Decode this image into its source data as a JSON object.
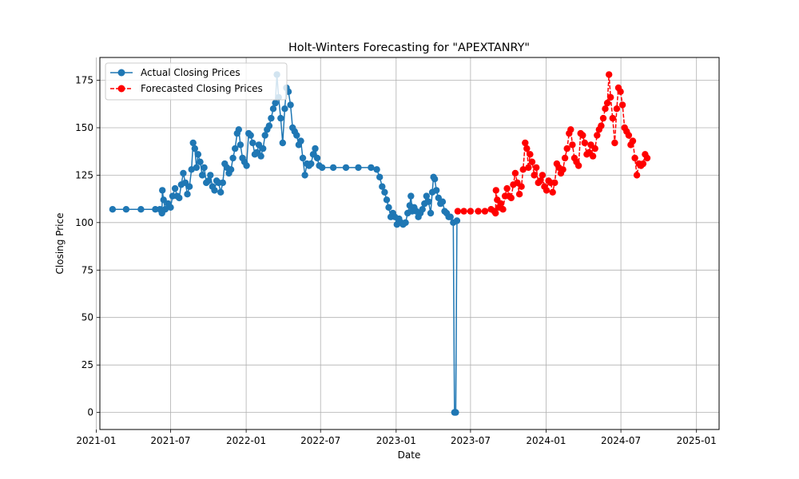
{
  "chart_data": {
    "type": "line",
    "title": "Holt-Winters Forecasting for \"APEXTANRY\"",
    "xlabel": "Date",
    "ylabel": "Closing Price",
    "xlim": [
      "2021-01-10",
      "2025-02-25"
    ],
    "ylim": [
      -9,
      187
    ],
    "x_ticks": [
      "2021-01-01",
      "2021-07-01",
      "2022-01-01",
      "2022-07-01",
      "2023-01-01",
      "2023-07-01",
      "2024-01-01",
      "2024-07-01",
      "2025-01-01"
    ],
    "x_tick_labels": [
      "2021-01",
      "2021-07",
      "2022-01",
      "2022-07",
      "2023-01",
      "2023-07",
      "2024-01",
      "2024-07",
      "2025-01"
    ],
    "y_ticks": [
      0,
      25,
      50,
      75,
      100,
      125,
      150,
      175
    ],
    "y_tick_labels": [
      "0",
      "25",
      "50",
      "75",
      "100",
      "125",
      "150",
      "175"
    ],
    "grid": true,
    "legend_position": "top-left",
    "series": [
      {
        "name": "Actual Closing Prices",
        "color": "#1f77b4",
        "line_style": "solid",
        "marker": "circle",
        "points": [
          [
            "2021-02-10",
            107
          ],
          [
            "2021-03-15",
            107
          ],
          [
            "2021-04-20",
            107
          ],
          [
            "2021-05-25",
            107
          ],
          [
            "2021-06-05",
            107
          ],
          [
            "2021-06-10",
            105
          ],
          [
            "2021-06-11",
            117
          ],
          [
            "2021-06-14",
            112
          ],
          [
            "2021-06-18",
            107
          ],
          [
            "2021-06-25",
            110
          ],
          [
            "2021-07-01",
            108
          ],
          [
            "2021-07-06",
            114
          ],
          [
            "2021-07-12",
            118
          ],
          [
            "2021-07-17",
            114
          ],
          [
            "2021-07-22",
            113
          ],
          [
            "2021-07-27",
            120
          ],
          [
            "2021-08-01",
            126
          ],
          [
            "2021-08-06",
            121
          ],
          [
            "2021-08-11",
            115
          ],
          [
            "2021-08-16",
            119
          ],
          [
            "2021-08-21",
            128
          ],
          [
            "2021-08-25",
            142
          ],
          [
            "2021-08-29",
            139
          ],
          [
            "2021-09-02",
            129
          ],
          [
            "2021-09-06",
            136
          ],
          [
            "2021-09-11",
            132
          ],
          [
            "2021-09-16",
            125
          ],
          [
            "2021-09-21",
            129
          ],
          [
            "2021-09-26",
            121
          ],
          [
            "2021-10-01",
            122
          ],
          [
            "2021-10-06",
            125
          ],
          [
            "2021-10-11",
            119
          ],
          [
            "2021-10-16",
            117
          ],
          [
            "2021-10-21",
            122
          ],
          [
            "2021-10-26",
            121
          ],
          [
            "2021-10-31",
            116
          ],
          [
            "2021-11-05",
            121
          ],
          [
            "2021-11-10",
            131
          ],
          [
            "2021-11-15",
            129
          ],
          [
            "2021-11-20",
            126
          ],
          [
            "2021-11-25",
            128
          ],
          [
            "2021-11-30",
            134
          ],
          [
            "2021-12-05",
            139
          ],
          [
            "2021-12-10",
            147
          ],
          [
            "2021-12-14",
            149
          ],
          [
            "2021-12-18",
            141
          ],
          [
            "2021-12-23",
            134
          ],
          [
            "2021-12-28",
            132
          ],
          [
            "2022-01-02",
            130
          ],
          [
            "2022-01-07",
            147
          ],
          [
            "2022-01-12",
            146
          ],
          [
            "2022-01-17",
            142
          ],
          [
            "2022-01-22",
            136
          ],
          [
            "2022-01-27",
            137
          ],
          [
            "2022-02-01",
            141
          ],
          [
            "2022-02-06",
            135
          ],
          [
            "2022-02-11",
            139
          ],
          [
            "2022-02-16",
            146
          ],
          [
            "2022-02-21",
            149
          ],
          [
            "2022-02-26",
            151
          ],
          [
            "2022-03-03",
            155
          ],
          [
            "2022-03-08",
            160
          ],
          [
            "2022-03-13",
            163
          ],
          [
            "2022-03-17",
            178
          ],
          [
            "2022-03-21",
            166
          ],
          [
            "2022-03-26",
            155
          ],
          [
            "2022-03-31",
            142
          ],
          [
            "2022-04-05",
            160
          ],
          [
            "2022-04-09",
            171
          ],
          [
            "2022-04-14",
            169
          ],
          [
            "2022-04-19",
            162
          ],
          [
            "2022-04-24",
            150
          ],
          [
            "2022-04-29",
            148
          ],
          [
            "2022-05-04",
            146
          ],
          [
            "2022-05-09",
            141
          ],
          [
            "2022-05-14",
            143
          ],
          [
            "2022-05-19",
            134
          ],
          [
            "2022-05-24",
            125
          ],
          [
            "2022-05-29",
            131
          ],
          [
            "2022-06-03",
            130
          ],
          [
            "2022-06-08",
            131
          ],
          [
            "2022-06-13",
            136
          ],
          [
            "2022-06-18",
            139
          ],
          [
            "2022-06-23",
            134
          ],
          [
            "2022-06-28",
            130
          ],
          [
            "2022-07-05",
            129
          ],
          [
            "2022-08-01",
            129
          ],
          [
            "2022-09-01",
            129
          ],
          [
            "2022-10-01",
            129
          ],
          [
            "2022-11-01",
            129
          ],
          [
            "2022-11-15",
            128
          ],
          [
            "2022-11-22",
            124
          ],
          [
            "2022-11-28",
            119
          ],
          [
            "2022-12-04",
            116
          ],
          [
            "2022-12-09",
            112
          ],
          [
            "2022-12-14",
            108
          ],
          [
            "2022-12-19",
            103
          ],
          [
            "2022-12-24",
            105
          ],
          [
            "2022-12-29",
            103
          ],
          [
            "2023-01-03",
            99
          ],
          [
            "2023-01-08",
            102
          ],
          [
            "2023-01-13",
            100
          ],
          [
            "2023-01-18",
            99
          ],
          [
            "2023-01-24",
            100
          ],
          [
            "2023-01-29",
            105
          ],
          [
            "2023-02-03",
            109
          ],
          [
            "2023-02-06",
            114
          ],
          [
            "2023-02-09",
            106
          ],
          [
            "2023-02-14",
            108
          ],
          [
            "2023-02-19",
            106
          ],
          [
            "2023-02-24",
            103
          ],
          [
            "2023-03-01",
            105
          ],
          [
            "2023-03-06",
            107
          ],
          [
            "2023-03-11",
            110
          ],
          [
            "2023-03-16",
            114
          ],
          [
            "2023-03-21",
            111
          ],
          [
            "2023-03-26",
            105
          ],
          [
            "2023-03-30",
            116
          ],
          [
            "2023-04-02",
            124
          ],
          [
            "2023-04-05",
            123
          ],
          [
            "2023-04-09",
            117
          ],
          [
            "2023-04-14",
            113
          ],
          [
            "2023-04-19",
            110
          ],
          [
            "2023-04-24",
            111
          ],
          [
            "2023-04-29",
            106
          ],
          [
            "2023-05-04",
            105
          ],
          [
            "2023-05-09",
            103
          ],
          [
            "2023-05-13",
            103
          ],
          [
            "2023-05-20",
            100
          ],
          [
            "2023-05-23",
            0
          ],
          [
            "2023-05-26",
            0
          ],
          [
            "2023-05-29",
            101
          ]
        ]
      },
      {
        "name": "Forecasted Closing Prices",
        "color": "#ff0000",
        "line_style": "dashed",
        "marker": "circle",
        "points": [
          [
            "2023-05-31",
            106
          ],
          [
            "2023-06-15",
            106
          ],
          [
            "2023-07-01",
            106
          ],
          [
            "2023-07-20",
            106
          ],
          [
            "2023-08-05",
            106
          ],
          [
            "2023-08-20",
            107
          ],
          [
            "2023-08-28",
            106
          ],
          [
            "2023-08-31",
            105
          ],
          [
            "2023-09-01",
            117
          ],
          [
            "2023-09-04",
            112
          ],
          [
            "2023-09-08",
            108
          ],
          [
            "2023-09-13",
            110
          ],
          [
            "2023-09-18",
            107
          ],
          [
            "2023-09-23",
            114
          ],
          [
            "2023-09-28",
            118
          ],
          [
            "2023-10-03",
            114
          ],
          [
            "2023-10-08",
            113
          ],
          [
            "2023-10-13",
            120
          ],
          [
            "2023-10-18",
            126
          ],
          [
            "2023-10-23",
            121
          ],
          [
            "2023-10-28",
            115
          ],
          [
            "2023-11-02",
            119
          ],
          [
            "2023-11-06",
            128
          ],
          [
            "2023-11-11",
            142
          ],
          [
            "2023-11-15",
            139
          ],
          [
            "2023-11-19",
            129
          ],
          [
            "2023-11-23",
            136
          ],
          [
            "2023-11-28",
            132
          ],
          [
            "2023-12-03",
            125
          ],
          [
            "2023-12-08",
            129
          ],
          [
            "2023-12-13",
            121
          ],
          [
            "2023-12-18",
            122
          ],
          [
            "2023-12-23",
            125
          ],
          [
            "2023-12-28",
            119
          ],
          [
            "2024-01-02",
            117
          ],
          [
            "2024-01-07",
            122
          ],
          [
            "2024-01-12",
            121
          ],
          [
            "2024-01-17",
            116
          ],
          [
            "2024-01-22",
            121
          ],
          [
            "2024-01-27",
            131
          ],
          [
            "2024-02-01",
            129
          ],
          [
            "2024-02-06",
            126
          ],
          [
            "2024-02-11",
            128
          ],
          [
            "2024-02-16",
            134
          ],
          [
            "2024-02-21",
            139
          ],
          [
            "2024-02-26",
            147
          ],
          [
            "2024-03-01",
            149
          ],
          [
            "2024-03-05",
            141
          ],
          [
            "2024-03-10",
            134
          ],
          [
            "2024-03-15",
            132
          ],
          [
            "2024-03-20",
            130
          ],
          [
            "2024-03-25",
            147
          ],
          [
            "2024-03-30",
            146
          ],
          [
            "2024-04-04",
            142
          ],
          [
            "2024-04-09",
            136
          ],
          [
            "2024-04-14",
            137
          ],
          [
            "2024-04-19",
            141
          ],
          [
            "2024-04-24",
            135
          ],
          [
            "2024-04-29",
            139
          ],
          [
            "2024-05-04",
            146
          ],
          [
            "2024-05-09",
            149
          ],
          [
            "2024-05-14",
            151
          ],
          [
            "2024-05-19",
            155
          ],
          [
            "2024-05-24",
            160
          ],
          [
            "2024-05-29",
            163
          ],
          [
            "2024-06-02",
            178
          ],
          [
            "2024-06-06",
            166
          ],
          [
            "2024-06-11",
            155
          ],
          [
            "2024-06-16",
            142
          ],
          [
            "2024-06-21",
            160
          ],
          [
            "2024-06-25",
            171
          ],
          [
            "2024-06-30",
            169
          ],
          [
            "2024-07-05",
            162
          ],
          [
            "2024-07-10",
            150
          ],
          [
            "2024-07-15",
            148
          ],
          [
            "2024-07-20",
            146
          ],
          [
            "2024-07-25",
            141
          ],
          [
            "2024-07-30",
            143
          ],
          [
            "2024-08-04",
            134
          ],
          [
            "2024-08-09",
            125
          ],
          [
            "2024-08-14",
            131
          ],
          [
            "2024-08-19",
            130
          ],
          [
            "2024-08-24",
            131
          ],
          [
            "2024-08-29",
            136
          ],
          [
            "2024-09-03",
            134
          ]
        ]
      }
    ]
  }
}
